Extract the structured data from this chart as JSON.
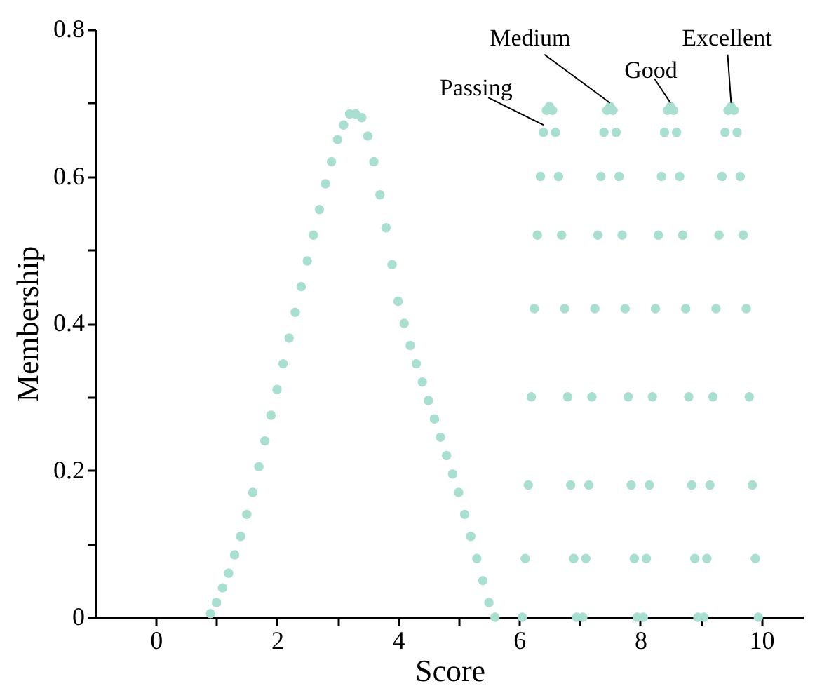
{
  "chart_data": {
    "type": "scatter",
    "xlabel": "Score",
    "ylabel": "Membership",
    "marker": "circle",
    "grid": false,
    "xlim": [
      -1,
      10.7
    ],
    "ylim": [
      0,
      0.8
    ],
    "xticks": [
      0,
      {
        "value": 1,
        "label": null
      },
      2,
      {
        "value": 3,
        "label": null
      },
      4,
      {
        "value": 5,
        "label": null
      },
      6,
      {
        "value": 7,
        "label": null
      },
      8,
      {
        "value": 9,
        "label": null
      },
      10
    ],
    "yticks": [
      0,
      {
        "value": 0.1,
        "label": null
      },
      0.2,
      {
        "value": 0.3,
        "label": null
      },
      0.4,
      {
        "value": 0.5,
        "label": null
      },
      0.6,
      {
        "value": 0.7,
        "label": null
      },
      0.8
    ],
    "series": [
      {
        "color": "#a8dfd0",
        "x": [
          0.9,
          1.0,
          1.1,
          1.2,
          1.3,
          1.4,
          1.5,
          1.6,
          1.7,
          1.8,
          1.9,
          2.0,
          2.1,
          2.2,
          2.3,
          2.4,
          2.5,
          2.6,
          2.7,
          2.8,
          2.9,
          3.0,
          3.1,
          3.2,
          3.3,
          3.4,
          3.5,
          3.6,
          3.7,
          3.8,
          3.9,
          4.0,
          4.1,
          4.2,
          4.3,
          4.4,
          4.5,
          4.6,
          4.7,
          4.8,
          4.9,
          5.0,
          5.1,
          5.2,
          5.3,
          5.4,
          5.5,
          5.6,
          6.05,
          6.1,
          6.15,
          6.2,
          6.25,
          6.3,
          6.35,
          6.4,
          6.45,
          6.5,
          6.55,
          6.6,
          6.65,
          6.7,
          6.75,
          6.8,
          6.85,
          6.9,
          6.95,
          7.05,
          7.1,
          7.15,
          7.2,
          7.25,
          7.3,
          7.35,
          7.4,
          7.45,
          7.5,
          7.55,
          7.6,
          7.65,
          7.7,
          7.75,
          7.8,
          7.85,
          7.9,
          7.95,
          8.05,
          8.1,
          8.15,
          8.2,
          8.25,
          8.3,
          8.35,
          8.4,
          8.45,
          8.5,
          8.55,
          8.6,
          8.65,
          8.7,
          8.75,
          8.8,
          8.85,
          8.9,
          8.95,
          9.05,
          9.1,
          9.15,
          9.2,
          9.25,
          9.3,
          9.35,
          9.4,
          9.45,
          9.5,
          9.55,
          9.6,
          9.65,
          9.7,
          9.75,
          9.8,
          9.85,
          9.9,
          9.95
        ],
        "values": [
          0.005,
          0.02,
          0.04,
          0.06,
          0.085,
          0.11,
          0.14,
          0.17,
          0.205,
          0.24,
          0.275,
          0.31,
          0.345,
          0.38,
          0.415,
          0.45,
          0.485,
          0.52,
          0.555,
          0.59,
          0.62,
          0.65,
          0.67,
          0.685,
          0.685,
          0.68,
          0.655,
          0.62,
          0.575,
          0.53,
          0.48,
          0.43,
          0.4,
          0.37,
          0.345,
          0.32,
          0.295,
          0.27,
          0.245,
          0.22,
          0.195,
          0.17,
          0.14,
          0.11,
          0.08,
          0.05,
          0.02,
          0,
          0,
          0.08,
          0.18,
          0.3,
          0.42,
          0.52,
          0.6,
          0.66,
          0.69,
          0.695,
          0.69,
          0.66,
          0.6,
          0.52,
          0.42,
          0.3,
          0.18,
          0.08,
          0,
          0,
          0.08,
          0.18,
          0.3,
          0.42,
          0.52,
          0.6,
          0.66,
          0.69,
          0.695,
          0.69,
          0.66,
          0.6,
          0.52,
          0.42,
          0.3,
          0.18,
          0.08,
          0,
          0,
          0.08,
          0.18,
          0.3,
          0.42,
          0.52,
          0.6,
          0.66,
          0.69,
          0.695,
          0.69,
          0.66,
          0.6,
          0.52,
          0.42,
          0.3,
          0.18,
          0.08,
          0,
          0,
          0.08,
          0.18,
          0.3,
          0.42,
          0.52,
          0.6,
          0.66,
          0.69,
          0.695,
          0.69,
          0.66,
          0.6,
          0.52,
          0.42,
          0.3,
          0.18,
          0.08,
          0
        ]
      }
    ],
    "annotations": [
      {
        "text": "Passing",
        "x": 6.4,
        "y": 0.67
      },
      {
        "text": "Medium",
        "x": 7.5,
        "y": 0.7
      },
      {
        "text": "Good",
        "x": 8.5,
        "y": 0.7
      },
      {
        "text": "Excellent",
        "x": 9.5,
        "y": 0.7
      }
    ]
  }
}
